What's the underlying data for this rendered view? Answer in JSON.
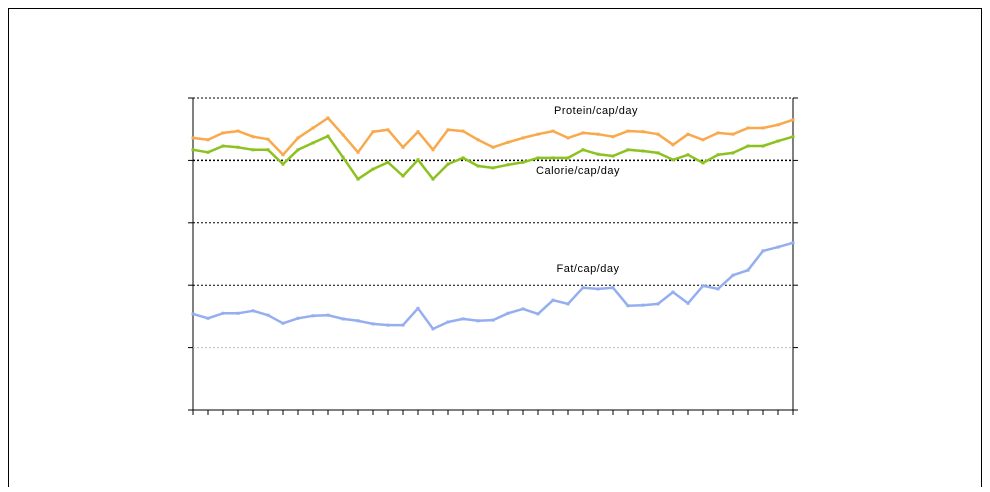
{
  "chart_data": {
    "type": "line",
    "categories": [
      null,
      null,
      null,
      null,
      null,
      null,
      null,
      null,
      null,
      null,
      null,
      null,
      null,
      null,
      null,
      null,
      null,
      null,
      null,
      null,
      null,
      null,
      null,
      null,
      null,
      null,
      null,
      null,
      null,
      null,
      null,
      null,
      null,
      null,
      null,
      null,
      null,
      null,
      null,
      null,
      null
    ],
    "ylim": [
      0,
      5
    ],
    "yticks": [
      0,
      1,
      2,
      3,
      4,
      5
    ],
    "grid": true,
    "series": [
      {
        "name": "Protein/cap/day",
        "color": "#f9a94b",
        "values": [
          4.36,
          4.33,
          4.44,
          4.47,
          4.38,
          4.34,
          4.09,
          4.36,
          4.52,
          4.68,
          4.41,
          4.13,
          4.46,
          4.49,
          4.21,
          4.46,
          4.17,
          4.49,
          4.47,
          4.33,
          4.21,
          4.29,
          4.36,
          4.42,
          4.47,
          4.36,
          4.44,
          4.42,
          4.38,
          4.47,
          4.46,
          4.42,
          4.25,
          4.42,
          4.33,
          4.44,
          4.42,
          4.52,
          4.52,
          4.57,
          4.65
        ]
      },
      {
        "name": "Calorie/cap/day",
        "color": "#8cc21f",
        "values": [
          4.17,
          4.13,
          4.23,
          4.21,
          4.17,
          4.17,
          3.94,
          4.17,
          4.28,
          4.39,
          4.05,
          3.7,
          3.86,
          3.97,
          3.75,
          4.01,
          3.7,
          3.94,
          4.04,
          3.91,
          3.88,
          3.93,
          3.97,
          4.04,
          4.04,
          4.04,
          4.17,
          4.1,
          4.07,
          4.17,
          4.15,
          4.12,
          4.01,
          4.09,
          3.96,
          4.09,
          4.12,
          4.23,
          4.23,
          4.31,
          4.38
        ]
      },
      {
        "name": "Fat/cap/day",
        "color": "#94aef0",
        "values": [
          1.54,
          1.47,
          1.55,
          1.55,
          1.59,
          1.52,
          1.39,
          1.47,
          1.51,
          1.52,
          1.46,
          1.43,
          1.38,
          1.36,
          1.36,
          1.63,
          1.3,
          1.41,
          1.46,
          1.43,
          1.44,
          1.55,
          1.62,
          1.54,
          1.76,
          1.7,
          1.96,
          1.94,
          1.96,
          1.67,
          1.68,
          1.7,
          1.89,
          1.71,
          1.99,
          1.94,
          2.16,
          2.24,
          2.55,
          2.61,
          2.68
        ]
      }
    ]
  }
}
